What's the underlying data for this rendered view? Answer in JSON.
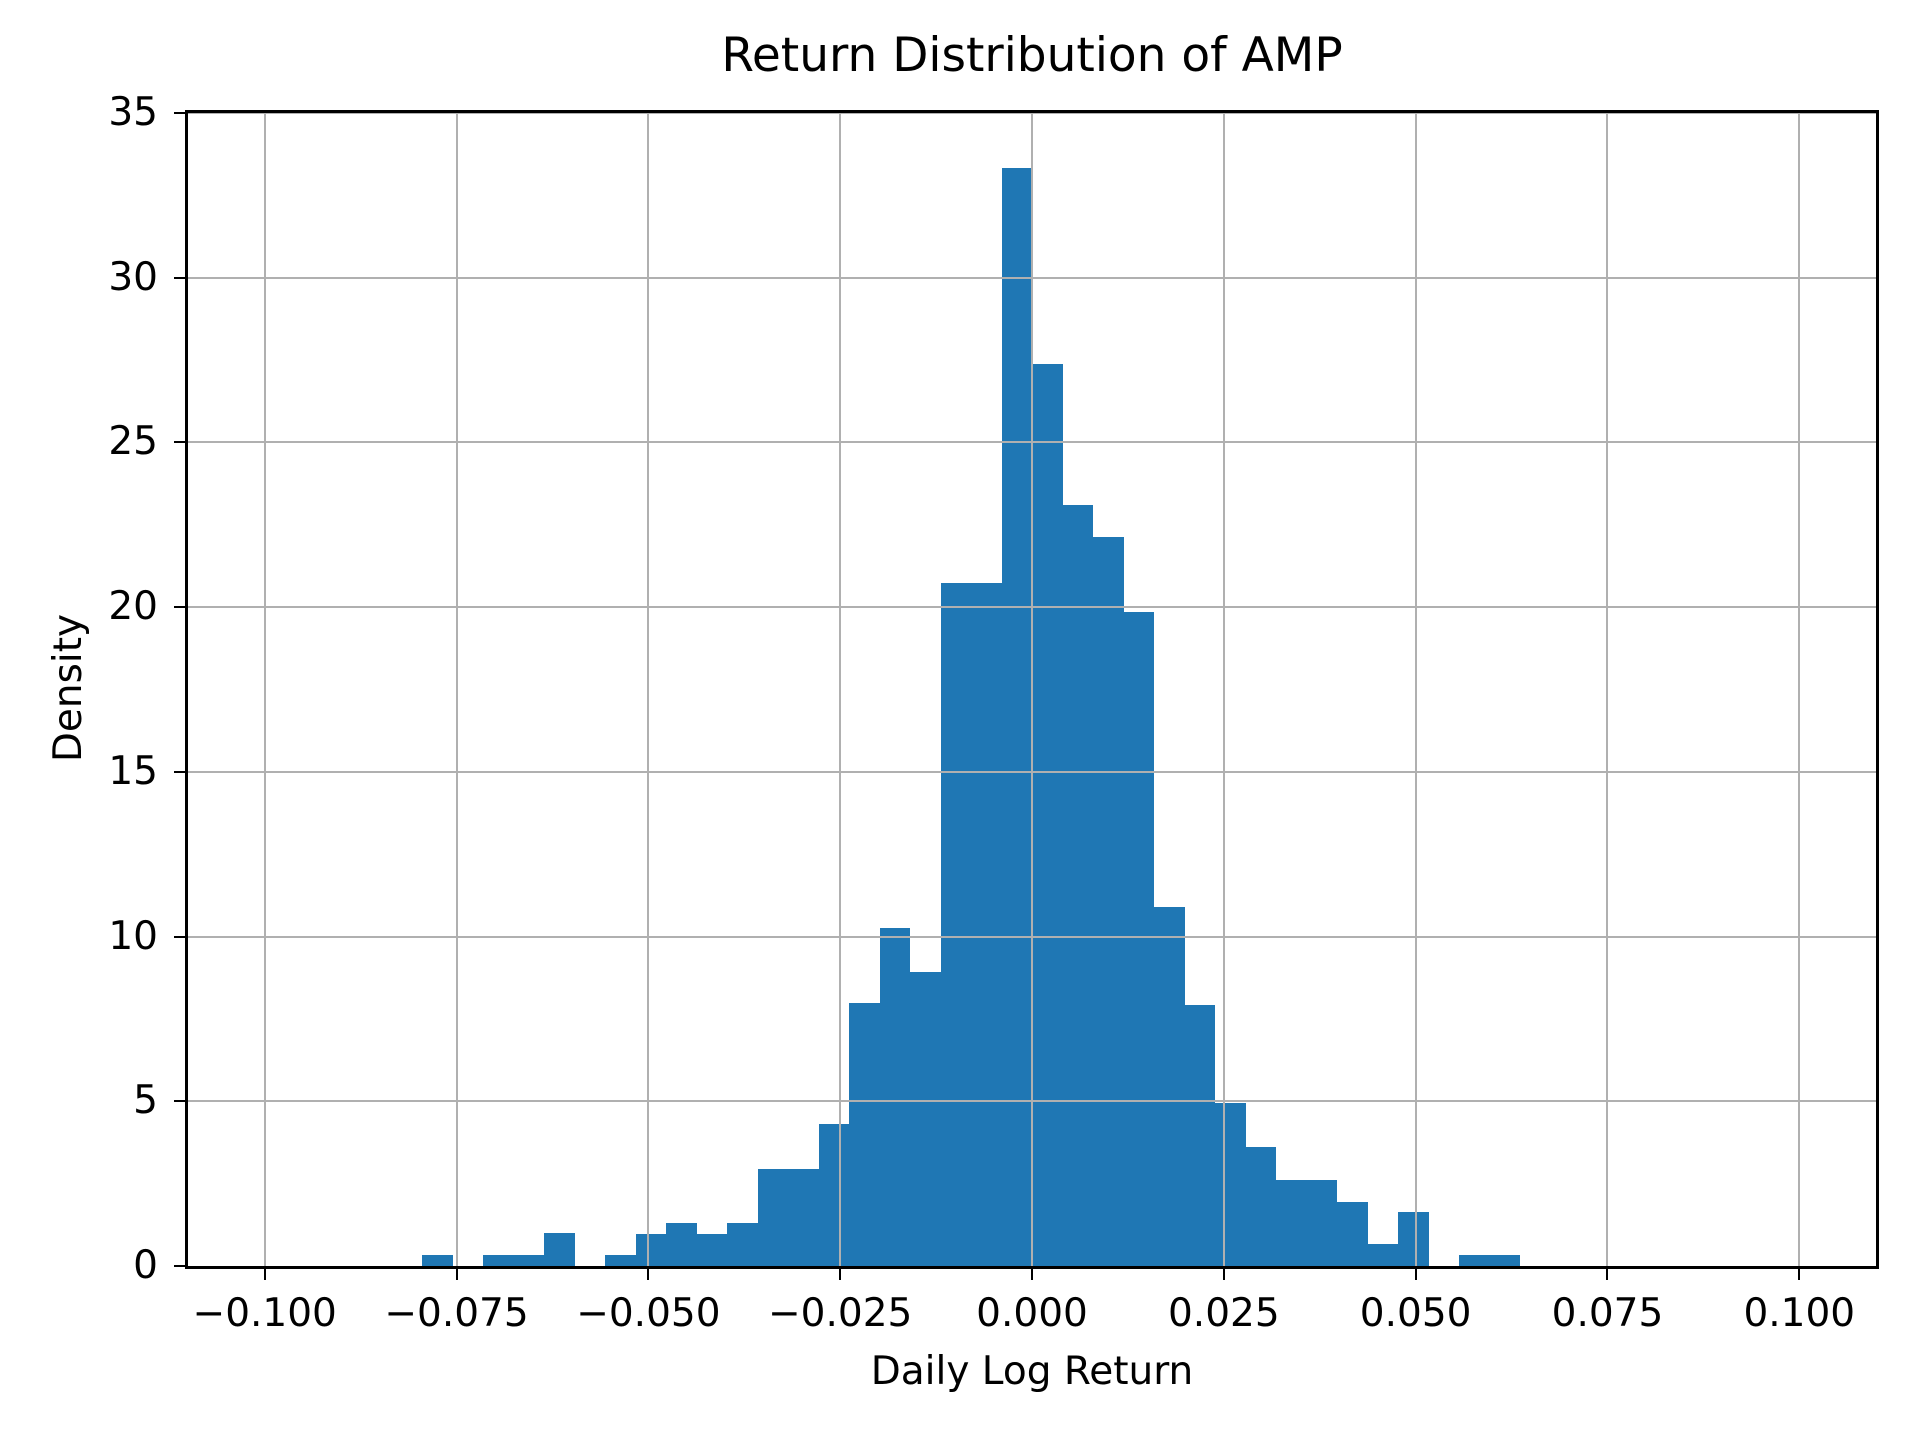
{
  "colors": {
    "bar": "#1f77b4",
    "grid": "#b0b0b0",
    "spine": "#000000",
    "text": "#000000",
    "background": "#ffffff"
  },
  "chart_data": {
    "type": "bar",
    "subtype": "histogram",
    "title": "Return Distribution of AMP",
    "xlabel": "Daily Log Return",
    "ylabel": "Density",
    "xlim": [
      -0.11,
      0.11
    ],
    "ylim": [
      0,
      35
    ],
    "x_ticks": [
      -0.1,
      -0.075,
      -0.05,
      -0.025,
      0.0,
      0.025,
      0.05,
      0.075,
      0.1
    ],
    "x_tick_labels": [
      "−0.100",
      "−0.075",
      "−0.050",
      "−0.025",
      "0.000",
      "0.025",
      "0.050",
      "0.075",
      "0.100"
    ],
    "y_ticks": [
      0,
      5,
      10,
      15,
      20,
      25,
      30,
      35
    ],
    "y_tick_labels": [
      "0",
      "5",
      "10",
      "15",
      "20",
      "25",
      "30",
      "35"
    ],
    "grid": true,
    "grid_above_bars": true,
    "legend": false,
    "bar_color": "#1f77b4",
    "bin_edges": [
      -0.07944,
      -0.07547,
      -0.07149,
      -0.06752,
      -0.06355,
      -0.05957,
      -0.0556,
      -0.05162,
      -0.04765,
      -0.04368,
      -0.0397,
      -0.03573,
      -0.03175,
      -0.02778,
      -0.02381,
      -0.01983,
      -0.01586,
      -0.01188,
      -0.00791,
      -0.00394,
      4e-05,
      0.00401,
      0.00799,
      0.01196,
      0.01593,
      0.01991,
      0.02388,
      0.02786,
      0.03183,
      0.0358,
      0.03978,
      0.04375,
      0.04773,
      0.0517,
      0.05567,
      0.05965,
      0.06362
    ],
    "densities": [
      0.33,
      0,
      0.33,
      0.33,
      0.99,
      0,
      0.33,
      0.98,
      1.3,
      0.98,
      1.3,
      2.95,
      2.95,
      4.31,
      7.97,
      10.27,
      8.93,
      20.74,
      20.74,
      33.34,
      27.39,
      23.1,
      22.13,
      19.86,
      10.9,
      7.92,
      4.94,
      3.61,
      2.6,
      2.6,
      1.95,
      0.66,
      1.64,
      0,
      0.33,
      0.33
    ]
  }
}
